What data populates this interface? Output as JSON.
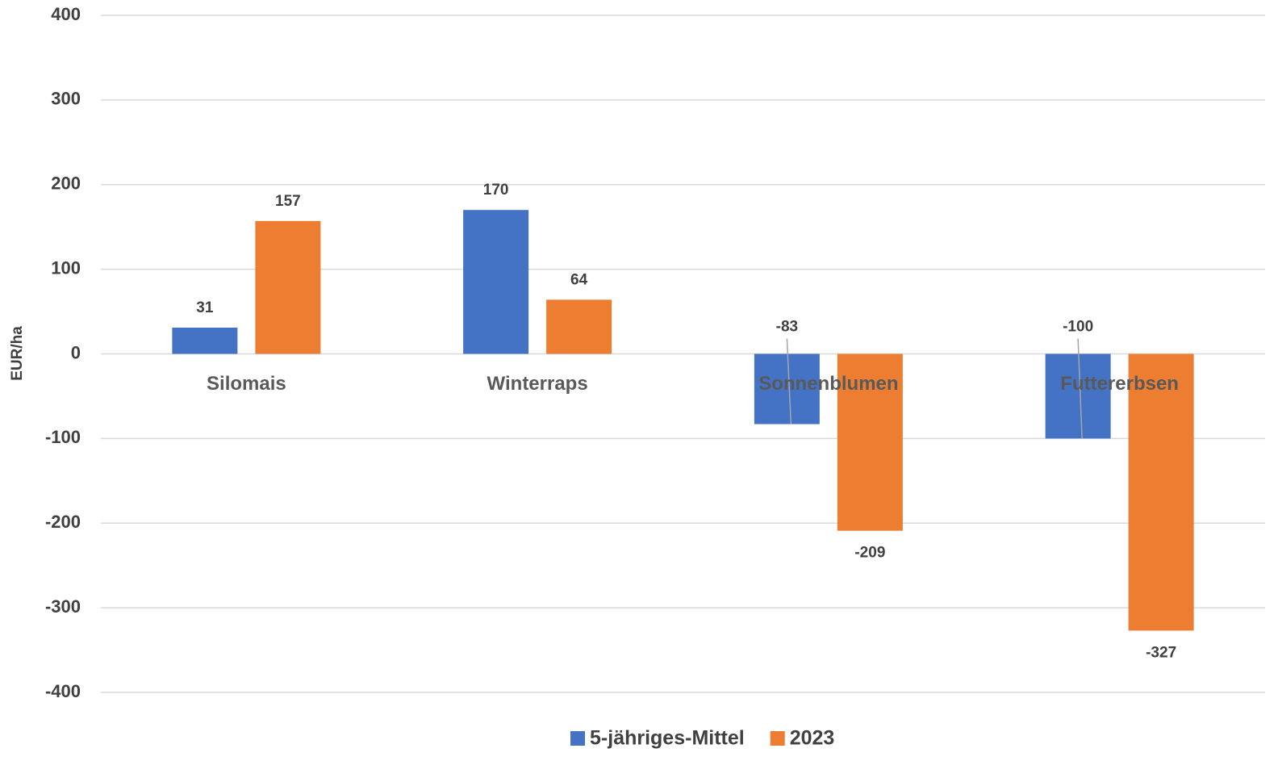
{
  "chart_data": {
    "type": "bar",
    "y_label": "EUR/ha",
    "categories": [
      "Silomais",
      "Winterraps",
      "Sonnenblumen",
      "Futtererbsen"
    ],
    "series": [
      {
        "name": "5-jähriges-Mittel",
        "color": "#4472c4",
        "values": [
          31,
          170,
          -83,
          -100
        ]
      },
      {
        "name": "2023",
        "color": "#ed7d31",
        "values": [
          157,
          64,
          -209,
          -327
        ]
      }
    ],
    "ylim": [
      -400,
      400
    ],
    "yticks": [
      -400,
      -300,
      -200,
      -100,
      0,
      100,
      200,
      300,
      400
    ],
    "grid": true,
    "legend": "bottom"
  }
}
